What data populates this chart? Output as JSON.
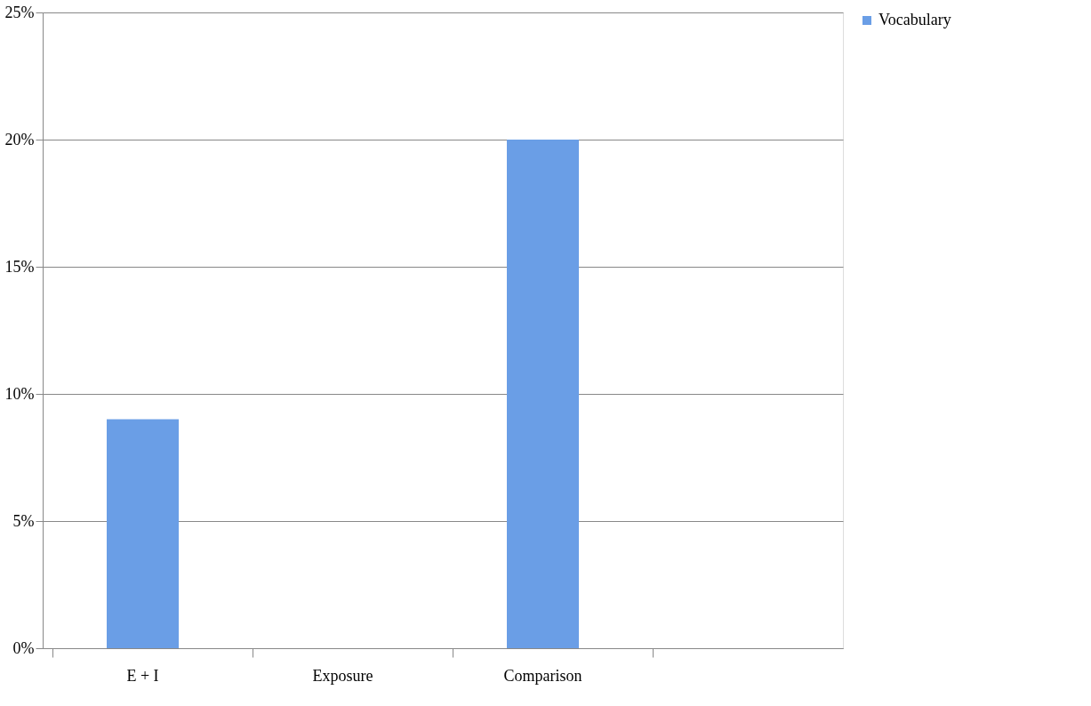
{
  "chart_data": {
    "type": "bar",
    "categories": [
      "E + I",
      "Exposure",
      "Comparison",
      null
    ],
    "series": [
      {
        "name": "Vocabulary",
        "color": "#6a9ee6",
        "values": [
          9,
          0,
          20,
          null
        ]
      }
    ],
    "ylim": [
      0,
      25
    ],
    "yticks": [
      {
        "value": 0,
        "label": "0%"
      },
      {
        "value": 5,
        "label": "5%"
      },
      {
        "value": 10,
        "label": "10%"
      },
      {
        "value": 15,
        "label": "15%"
      },
      {
        "value": 20,
        "label": "20%"
      },
      {
        "value": 25,
        "label": "25%"
      }
    ],
    "grid": "y",
    "legend": "right"
  }
}
